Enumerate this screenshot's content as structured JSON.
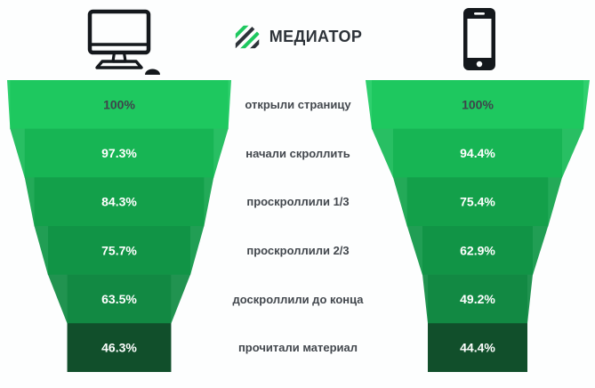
{
  "header": {
    "logo_text": "МЕДИАТОР",
    "left_icon": "desktop-computer-icon",
    "right_icon": "smartphone-icon"
  },
  "chart_data": {
    "type": "funnel",
    "title": "",
    "orientation": "two mirrored vertical funnels (desktop left, mobile right) with shared stage labels in the middle",
    "categories": [
      "открыли страницу",
      "начали скроллить",
      "проскроллили 1/3",
      "проскроллили 2/3",
      "доскроллили до конца",
      "прочитали материал"
    ],
    "series": [
      {
        "name": "desktop",
        "values": [
          100,
          97.3,
          84.3,
          75.7,
          63.5,
          46.3
        ],
        "labels": [
          "100%",
          "97.3%",
          "84.3%",
          "75.7%",
          "63.5%",
          "46.3%"
        ]
      },
      {
        "name": "mobile",
        "values": [
          100,
          94.4,
          75.4,
          62.9,
          49.2,
          44.4
        ],
        "labels": [
          "100%",
          "94.4%",
          "75.4%",
          "62.9%",
          "49.2%",
          "44.4%"
        ]
      }
    ],
    "segment_colors": [
      "#1ec85f",
      "#17b554",
      "#13a04a",
      "#119446",
      "#128943",
      "#114f2b"
    ],
    "segment_side_colors": [
      "#2fd06e",
      "#28bf63",
      "#23aa58",
      "#219e54",
      "#219350",
      "#114f2b"
    ],
    "value_text_colors": [
      "#3e444b",
      "#ffffff",
      "#ffffff",
      "#ffffff",
      "#ffffff",
      "#ffffff"
    ],
    "label_color": "#43484e",
    "brand_green": "#1ec85f",
    "brand_dark": "#2d3339",
    "background": "#fdfefe"
  }
}
